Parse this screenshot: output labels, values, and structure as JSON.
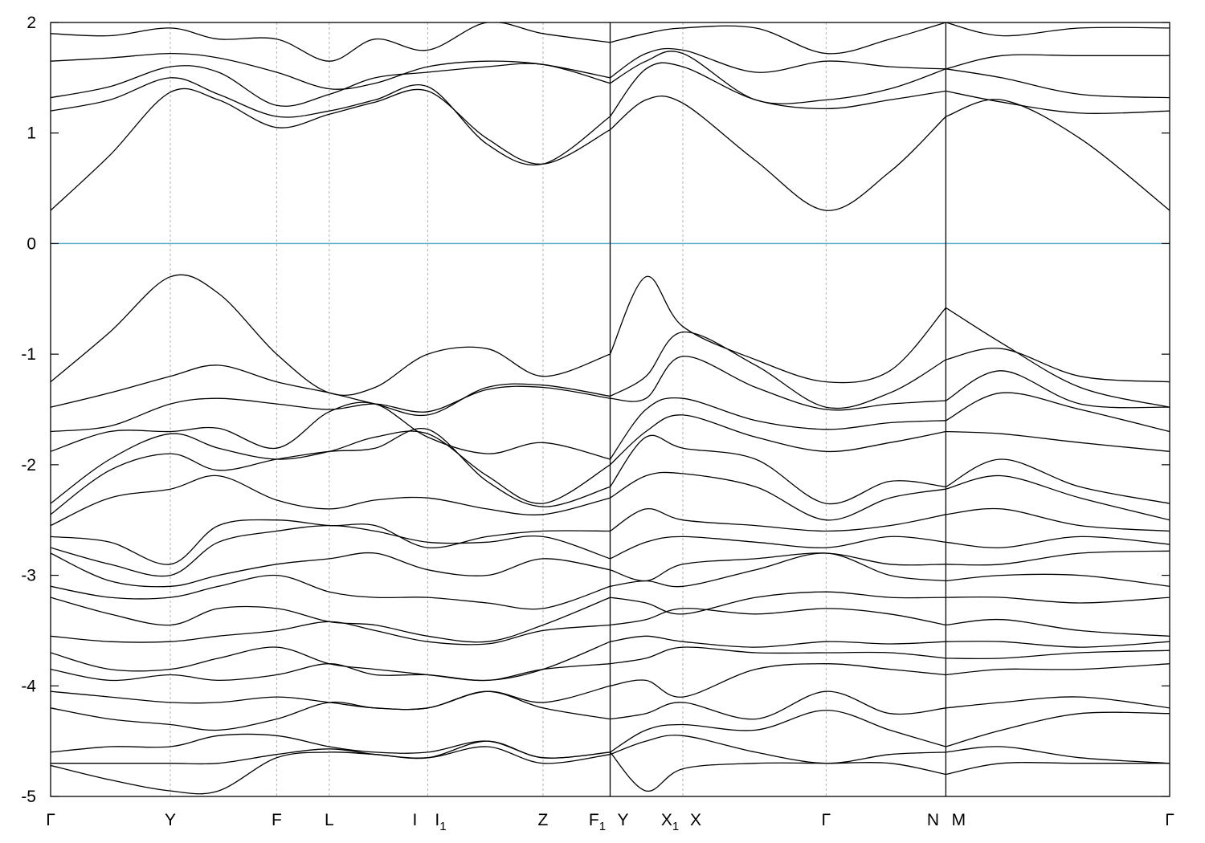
{
  "chart_data": {
    "type": "line",
    "title": "",
    "xlabel": "",
    "ylabel": "",
    "ylim": [
      -5,
      2
    ],
    "yticks": [
      -5,
      -4,
      -3,
      -2,
      -1,
      0,
      1,
      2
    ],
    "ytick_labels": [
      "-5",
      "-4",
      "-3",
      "-2",
      "-1",
      "0",
      "1",
      "2"
    ],
    "fermi_level": 0,
    "fermi_line_color": "#4fa8c8",
    "line_color": "#000000",
    "grid": "vertical dashed lines at high-symmetry points",
    "x_range": [
      0,
      10
    ],
    "breaks": [
      5.0,
      8.0
    ],
    "kpoints": [
      {
        "x": 0.0,
        "label": "Γ",
        "sub": ""
      },
      {
        "x": 1.07,
        "label": "Y",
        "sub": ""
      },
      {
        "x": 2.02,
        "label": "F",
        "sub": ""
      },
      {
        "x": 2.49,
        "label": "L",
        "sub": ""
      },
      {
        "x": 3.37,
        "label": "I",
        "sub": ""
      },
      {
        "x": 3.37,
        "label": "I",
        "sub": "1"
      },
      {
        "x": 4.4,
        "label": "Z",
        "sub": ""
      },
      {
        "x": 5.0,
        "label": "F",
        "sub": "1"
      },
      {
        "x": 5.0,
        "label": "Y",
        "sub": ""
      },
      {
        "x": 5.65,
        "label": "X",
        "sub": "1"
      },
      {
        "x": 5.65,
        "label": "X",
        "sub": ""
      },
      {
        "x": 6.93,
        "label": "Γ",
        "sub": ""
      },
      {
        "x": 8.0,
        "label": "N",
        "sub": ""
      },
      {
        "x": 8.0,
        "label": "M",
        "sub": ""
      },
      {
        "x": 10.0,
        "label": "Γ",
        "sub": ""
      }
    ],
    "series": [
      {
        "x": [
          0,
          0.53,
          1.07,
          1.5,
          2.02,
          2.49,
          2.9,
          3.37,
          3.9,
          4.4,
          5.0,
          5.32,
          5.65,
          6.3,
          6.93,
          7.5,
          8.0,
          8.5,
          9.2,
          10.0
        ],
        "values": [
          0.3,
          0.8,
          1.37,
          1.3,
          1.05,
          1.17,
          1.28,
          1.38,
          0.95,
          0.72,
          1.03,
          1.3,
          1.27,
          0.75,
          0.3,
          0.65,
          1.15,
          1.3,
          0.95,
          0.3
        ]
      },
      {
        "x": [
          0,
          0.53,
          1.07,
          1.5,
          2.02,
          2.49,
          2.9,
          3.37,
          3.9,
          4.4,
          5.0,
          5.32,
          5.65,
          6.3,
          6.93,
          7.5,
          8.0,
          8.5,
          9.2,
          10.0
        ],
        "values": [
          1.2,
          1.3,
          1.5,
          1.35,
          1.15,
          1.2,
          1.3,
          1.42,
          0.9,
          0.72,
          1.15,
          1.58,
          1.6,
          1.3,
          1.22,
          1.3,
          1.38,
          1.28,
          1.18,
          1.2
        ]
      },
      {
        "x": [
          0,
          0.53,
          1.07,
          1.5,
          2.02,
          2.49,
          2.9,
          3.37,
          3.9,
          4.4,
          5.0,
          5.32,
          5.65,
          6.3,
          6.93,
          7.5,
          8.0,
          8.5,
          9.2,
          10.0
        ],
        "values": [
          1.32,
          1.42,
          1.6,
          1.55,
          1.25,
          1.35,
          1.5,
          1.55,
          1.6,
          1.62,
          1.45,
          1.65,
          1.72,
          1.3,
          1.3,
          1.4,
          1.58,
          1.5,
          1.35,
          1.32
        ]
      },
      {
        "x": [
          0,
          0.53,
          1.07,
          1.5,
          2.02,
          2.49,
          2.9,
          3.37,
          3.9,
          4.4,
          5.0,
          5.32,
          5.65,
          6.3,
          6.93,
          7.5,
          8.0,
          8.5,
          9.2,
          10.0
        ],
        "values": [
          1.65,
          1.68,
          1.72,
          1.68,
          1.55,
          1.4,
          1.45,
          1.6,
          1.65,
          1.62,
          1.5,
          1.72,
          1.75,
          1.55,
          1.65,
          1.6,
          1.58,
          1.7,
          1.7,
          1.7
        ]
      },
      {
        "x": [
          0,
          0.53,
          1.07,
          1.5,
          2.02,
          2.49,
          2.9,
          3.37,
          3.9,
          4.4,
          5.0,
          5.32,
          5.65,
          6.3,
          6.93,
          7.5,
          8.0,
          8.5,
          9.2,
          10.0
        ],
        "values": [
          1.9,
          1.88,
          1.95,
          1.85,
          1.85,
          1.65,
          1.85,
          1.75,
          2.0,
          1.9,
          1.82,
          1.9,
          1.95,
          1.95,
          1.72,
          1.85,
          2.0,
          1.88,
          1.95,
          1.95
        ]
      },
      {
        "x": [
          0,
          0.53,
          1.07,
          1.5,
          2.02,
          2.49,
          2.9,
          3.37,
          3.9,
          4.4,
          5.0,
          5.32,
          5.65,
          6.3,
          6.93,
          7.5,
          8.0,
          8.5,
          9.2,
          10.0
        ],
        "values": [
          -1.25,
          -0.8,
          -0.3,
          -0.45,
          -1.0,
          -1.35,
          -1.3,
          -1.0,
          -0.95,
          -1.2,
          -1.0,
          -0.3,
          -0.75,
          -1.05,
          -1.25,
          -1.15,
          -0.58,
          -0.9,
          -1.3,
          -1.48
        ]
      },
      {
        "x": [
          0,
          0.53,
          1.07,
          1.5,
          2.02,
          2.49,
          2.9,
          3.37,
          3.9,
          4.4,
          5.0,
          5.32,
          5.65,
          6.3,
          6.93,
          7.5,
          8.0,
          8.5,
          9.2,
          10.0
        ],
        "values": [
          -1.48,
          -1.35,
          -1.2,
          -1.1,
          -1.25,
          -1.35,
          -1.45,
          -1.55,
          -1.3,
          -1.28,
          -1.38,
          -1.2,
          -0.8,
          -1.1,
          -1.48,
          -1.35,
          -1.05,
          -0.95,
          -1.2,
          -1.25
        ]
      },
      {
        "x": [
          0,
          0.53,
          1.07,
          1.5,
          2.02,
          2.49,
          2.9,
          3.37,
          3.9,
          4.4,
          5.0,
          5.32,
          5.65,
          6.3,
          6.93,
          7.5,
          8.0,
          8.5,
          9.2,
          10.0
        ],
        "values": [
          -1.7,
          -1.65,
          -1.45,
          -1.4,
          -1.45,
          -1.5,
          -1.45,
          -1.52,
          -1.32,
          -1.3,
          -1.4,
          -1.4,
          -1.02,
          -1.3,
          -1.5,
          -1.45,
          -1.42,
          -1.15,
          -1.45,
          -1.48
        ]
      },
      {
        "x": [
          0,
          0.53,
          1.07,
          1.5,
          2.02,
          2.49,
          2.9,
          3.37,
          3.9,
          4.4,
          5.0,
          5.32,
          5.65,
          6.3,
          6.93,
          7.5,
          8.0,
          8.5,
          9.2,
          10.0
        ],
        "values": [
          -1.88,
          -1.7,
          -1.7,
          -1.67,
          -1.85,
          -1.52,
          -1.45,
          -1.75,
          -1.9,
          -1.8,
          -1.95,
          -1.5,
          -1.4,
          -1.6,
          -1.68,
          -1.62,
          -1.6,
          -1.35,
          -1.5,
          -1.7
        ]
      },
      {
        "x": [
          0,
          0.53,
          1.07,
          1.5,
          2.02,
          2.49,
          2.9,
          3.37,
          3.9,
          4.4,
          5.0,
          5.32,
          5.65,
          6.3,
          6.93,
          7.5,
          8.0,
          8.5,
          9.2,
          10.0
        ],
        "values": [
          -2.35,
          -1.95,
          -1.72,
          -1.85,
          -1.95,
          -1.88,
          -1.75,
          -1.72,
          -2.1,
          -2.35,
          -2.0,
          -1.7,
          -1.55,
          -1.75,
          -1.88,
          -1.8,
          -1.7,
          -1.72,
          -1.8,
          -1.88
        ]
      },
      {
        "x": [
          0,
          0.53,
          1.07,
          1.5,
          2.02,
          2.49,
          2.9,
          3.37,
          3.9,
          4.4,
          5.0,
          5.32,
          5.65,
          6.3,
          6.93,
          7.5,
          8.0,
          8.5,
          9.2,
          10.0
        ],
        "values": [
          -2.45,
          -2.05,
          -1.9,
          -2.05,
          -1.95,
          -1.88,
          -1.85,
          -1.68,
          -2.15,
          -2.38,
          -2.2,
          -1.75,
          -1.85,
          -1.95,
          -2.35,
          -2.15,
          -2.2,
          -1.95,
          -2.2,
          -2.35
        ]
      },
      {
        "x": [
          0,
          0.53,
          1.07,
          1.5,
          2.02,
          2.49,
          2.9,
          3.37,
          3.9,
          4.4,
          5.0,
          5.32,
          5.65,
          6.3,
          6.93,
          7.5,
          8.0,
          8.5,
          9.2,
          10.0
        ],
        "values": [
          -2.55,
          -2.3,
          -2.22,
          -2.1,
          -2.32,
          -2.4,
          -2.32,
          -2.3,
          -2.4,
          -2.45,
          -2.3,
          -2.1,
          -2.08,
          -2.2,
          -2.5,
          -2.3,
          -2.22,
          -2.1,
          -2.3,
          -2.5
        ]
      },
      {
        "x": [
          0,
          0.53,
          1.07,
          1.5,
          2.02,
          2.49,
          2.9,
          3.37,
          3.9,
          4.4,
          5.0,
          5.32,
          5.65,
          6.3,
          6.93,
          7.5,
          8.0,
          8.5,
          9.2,
          10.0
        ],
        "values": [
          -2.65,
          -2.7,
          -2.9,
          -2.55,
          -2.5,
          -2.55,
          -2.55,
          -2.75,
          -2.65,
          -2.6,
          -2.6,
          -2.4,
          -2.5,
          -2.55,
          -2.6,
          -2.55,
          -2.45,
          -2.4,
          -2.55,
          -2.6
        ]
      },
      {
        "x": [
          0,
          0.53,
          1.07,
          1.5,
          2.02,
          2.49,
          2.9,
          3.37,
          3.9,
          4.4,
          5.0,
          5.32,
          5.65,
          6.3,
          6.93,
          7.5,
          8.0,
          8.5,
          9.2,
          10.0
        ],
        "values": [
          -2.75,
          -2.9,
          -3.0,
          -2.7,
          -2.6,
          -2.55,
          -2.6,
          -2.7,
          -2.7,
          -2.65,
          -2.85,
          -2.7,
          -2.65,
          -2.7,
          -2.75,
          -2.65,
          -2.7,
          -2.75,
          -2.65,
          -2.72
        ]
      },
      {
        "x": [
          0,
          0.53,
          1.07,
          1.5,
          2.02,
          2.49,
          2.9,
          3.37,
          3.9,
          4.4,
          5.0,
          5.32,
          5.65,
          6.3,
          6.93,
          7.5,
          8.0,
          8.5,
          9.2,
          10.0
        ],
        "values": [
          -2.8,
          -3.05,
          -3.1,
          -3.0,
          -2.9,
          -2.85,
          -2.8,
          -2.95,
          -3.0,
          -2.85,
          -2.95,
          -3.05,
          -2.9,
          -2.85,
          -2.8,
          -2.9,
          -2.9,
          -2.9,
          -2.8,
          -2.78
        ]
      },
      {
        "x": [
          0,
          0.53,
          1.07,
          1.5,
          2.02,
          2.49,
          2.9,
          3.37,
          3.9,
          4.4,
          5.0,
          5.32,
          5.65,
          6.3,
          6.93,
          7.5,
          8.0,
          8.5,
          9.2,
          10.0
        ],
        "values": [
          -3.1,
          -3.2,
          -3.2,
          -3.1,
          -3.0,
          -3.15,
          -3.2,
          -3.2,
          -3.25,
          -3.3,
          -3.1,
          -3.05,
          -3.1,
          -2.95,
          -2.8,
          -3.0,
          -3.05,
          -3.0,
          -3.0,
          -3.1
        ]
      },
      {
        "x": [
          0,
          0.53,
          1.07,
          1.5,
          2.02,
          2.49,
          2.9,
          3.37,
          3.9,
          4.4,
          5.0,
          5.32,
          5.65,
          6.3,
          6.93,
          7.5,
          8.0,
          8.5,
          9.2,
          10.0
        ],
        "values": [
          -3.2,
          -3.35,
          -3.45,
          -3.3,
          -3.3,
          -3.42,
          -3.45,
          -3.55,
          -3.6,
          -3.45,
          -3.2,
          -3.25,
          -3.35,
          -3.2,
          -3.15,
          -3.2,
          -3.2,
          -3.2,
          -3.25,
          -3.2
        ]
      },
      {
        "x": [
          0,
          0.53,
          1.07,
          1.5,
          2.02,
          2.49,
          2.9,
          3.37,
          3.9,
          4.4,
          5.0,
          5.32,
          5.65,
          6.3,
          6.93,
          7.5,
          8.0,
          8.5,
          9.2,
          10.0
        ],
        "values": [
          -3.55,
          -3.6,
          -3.6,
          -3.55,
          -3.5,
          -3.42,
          -3.5,
          -3.6,
          -3.62,
          -3.5,
          -3.45,
          -3.4,
          -3.3,
          -3.35,
          -3.3,
          -3.35,
          -3.45,
          -3.4,
          -3.5,
          -3.55
        ]
      },
      {
        "x": [
          0,
          0.53,
          1.07,
          1.5,
          2.02,
          2.49,
          2.9,
          3.37,
          3.9,
          4.4,
          5.0,
          5.32,
          5.65,
          6.3,
          6.93,
          7.5,
          8.0,
          8.5,
          9.2,
          10.0
        ],
        "values": [
          -3.7,
          -3.85,
          -3.85,
          -3.75,
          -3.65,
          -3.8,
          -3.85,
          -3.9,
          -3.95,
          -3.85,
          -3.6,
          -3.55,
          -3.6,
          -3.65,
          -3.6,
          -3.62,
          -3.6,
          -3.6,
          -3.65,
          -3.6
        ]
      },
      {
        "x": [
          0,
          0.53,
          1.07,
          1.5,
          2.02,
          2.49,
          2.9,
          3.37,
          3.9,
          4.4,
          5.0,
          5.32,
          5.65,
          6.3,
          6.93,
          7.5,
          8.0,
          8.5,
          9.2,
          10.0
        ],
        "values": [
          -3.85,
          -3.95,
          -3.9,
          -3.95,
          -3.9,
          -3.8,
          -3.9,
          -3.9,
          -3.95,
          -3.85,
          -3.8,
          -3.75,
          -3.65,
          -3.7,
          -3.7,
          -3.7,
          -3.75,
          -3.75,
          -3.7,
          -3.68
        ]
      },
      {
        "x": [
          0,
          0.53,
          1.07,
          1.5,
          2.02,
          2.49,
          2.9,
          3.37,
          3.9,
          4.4,
          5.0,
          5.32,
          5.65,
          6.3,
          6.93,
          7.5,
          8.0,
          8.5,
          9.2,
          10.0
        ],
        "values": [
          -4.05,
          -4.1,
          -4.15,
          -4.15,
          -4.1,
          -4.15,
          -4.2,
          -4.2,
          -4.05,
          -4.15,
          -4.0,
          -3.95,
          -4.1,
          -3.85,
          -3.8,
          -3.85,
          -3.9,
          -3.85,
          -3.85,
          -3.8
        ]
      },
      {
        "x": [
          0,
          0.53,
          1.07,
          1.5,
          2.02,
          2.49,
          2.9,
          3.37,
          3.9,
          4.4,
          5.0,
          5.32,
          5.65,
          6.3,
          6.93,
          7.5,
          8.0,
          8.5,
          9.2,
          10.0
        ],
        "values": [
          -4.2,
          -4.3,
          -4.35,
          -4.4,
          -4.3,
          -4.15,
          -4.2,
          -4.2,
          -4.05,
          -4.2,
          -4.3,
          -4.25,
          -4.15,
          -4.3,
          -4.05,
          -4.25,
          -4.2,
          -4.15,
          -4.1,
          -4.2
        ]
      },
      {
        "x": [
          0,
          0.53,
          1.07,
          1.5,
          2.02,
          2.49,
          2.9,
          3.37,
          3.9,
          4.4,
          5.0,
          5.32,
          5.65,
          6.3,
          6.93,
          7.5,
          8.0,
          8.5,
          9.2,
          10.0
        ],
        "values": [
          -4.6,
          -4.55,
          -4.55,
          -4.45,
          -4.45,
          -4.55,
          -4.6,
          -4.6,
          -4.5,
          -4.65,
          -4.6,
          -4.4,
          -4.35,
          -4.4,
          -4.22,
          -4.4,
          -4.55,
          -4.4,
          -4.25,
          -4.25
        ]
      },
      {
        "x": [
          0,
          0.53,
          1.07,
          1.5,
          2.02,
          2.49,
          2.9,
          3.37,
          3.9,
          4.4,
          5.0,
          5.32,
          5.65,
          6.3,
          6.93,
          7.5,
          8.0,
          8.5,
          9.2,
          10.0
        ],
        "values": [
          -4.7,
          -4.7,
          -4.7,
          -4.7,
          -4.62,
          -4.57,
          -4.62,
          -4.65,
          -4.55,
          -4.7,
          -4.62,
          -4.5,
          -4.45,
          -4.6,
          -4.7,
          -4.62,
          -4.6,
          -4.55,
          -4.65,
          -4.7
        ]
      },
      {
        "x": [
          0,
          0.53,
          1.07,
          1.5,
          2.02,
          2.49,
          2.9,
          3.37,
          3.9,
          4.4,
          5.0,
          5.32,
          5.65,
          6.3,
          6.93,
          7.5,
          8.0,
          8.5,
          9.2,
          10.0
        ],
        "values": [
          -4.72,
          -4.85,
          -4.95,
          -4.95,
          -4.65,
          -4.6,
          -4.62,
          -4.65,
          -4.5,
          -4.65,
          -4.6,
          -4.95,
          -4.75,
          -4.7,
          -4.7,
          -4.7,
          -4.8,
          -4.7,
          -4.7,
          -4.7
        ]
      }
    ]
  }
}
